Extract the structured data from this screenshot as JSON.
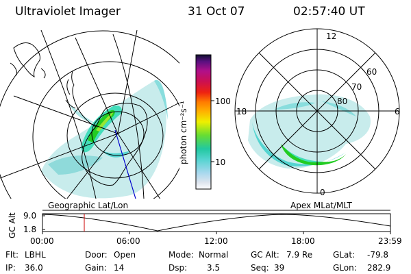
{
  "header": {
    "title": "Ultraviolet Imager",
    "date": "31 Oct 07",
    "time": "02:57:40 UT"
  },
  "colorbar": {
    "unit_label": "photon cm⁻²s⁻¹",
    "ticks": [
      "100",
      "10"
    ]
  },
  "left_map": {
    "label": "Geographic Lat/Lon"
  },
  "right_map": {
    "label": "Apex MLat/MLT",
    "mlt_labels": {
      "top": "12",
      "left": "18",
      "right": "6",
      "bottom": "0"
    },
    "lat_labels": [
      "60",
      "70",
      "80"
    ]
  },
  "altitude_plot": {
    "ylabel": "GC Alt",
    "yticks": [
      "9.0",
      "1.8"
    ],
    "xticks": [
      "00:00",
      "06:00",
      "12:00",
      "18:00",
      "23:59"
    ]
  },
  "footer": {
    "flt_label": "Flt:",
    "flt_value": "LBHL",
    "ip_label": "IP:",
    "ip_value": "36.0",
    "door_label": "Door:",
    "door_value": "Open",
    "gain_label": "Gain:",
    "gain_value": "14",
    "mode_label": "Mode:",
    "mode_value": "Normal",
    "dsp_label": "Dsp:",
    "dsp_value": "3.5",
    "gcalt_label": "GC Alt:",
    "gcalt_value": "7.9 Re",
    "seq_label": "Seq:",
    "seq_value": "39",
    "glat_label": "GLat:",
    "glat_value": "-79.8",
    "glon_label": "GLon:",
    "glon_value": "282.9"
  },
  "colors": {
    "aurora_bright": "#22cc22",
    "aurora_mid": "#44ddbb",
    "aurora_faint": "#c8ecec",
    "marker": "#cc0000",
    "track": "#0000cc"
  }
}
